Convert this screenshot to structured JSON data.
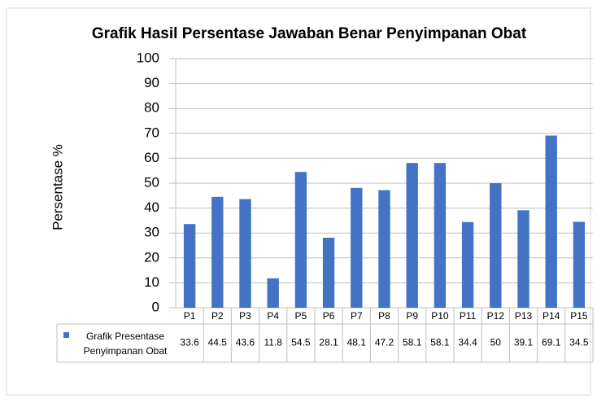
{
  "chart_data": {
    "type": "bar",
    "title": "Grafik Hasil Persentase Jawaban Benar Penyimpanan Obat",
    "y_label": "Persentase %",
    "categories": [
      "P1",
      "P2",
      "P3",
      "P4",
      "P5",
      "P6",
      "P7",
      "P8",
      "P9",
      "P10",
      "P11",
      "P12",
      "P13",
      "P14",
      "P15"
    ],
    "series": [
      {
        "name": "Grafik Presentase Penyimpanan Obat",
        "color": "#4472c4",
        "values": [
          33.6,
          44.5,
          43.6,
          11.8,
          54.5,
          28.1,
          48.1,
          47.2,
          58.1,
          58.1,
          34.4,
          50,
          39.1,
          69.1,
          34.5
        ]
      }
    ],
    "ylim": [
      0,
      100
    ],
    "yticks": [
      0,
      10,
      20,
      30,
      40,
      50,
      60,
      70,
      80,
      90,
      100
    ],
    "grid": true,
    "data_table": true
  }
}
